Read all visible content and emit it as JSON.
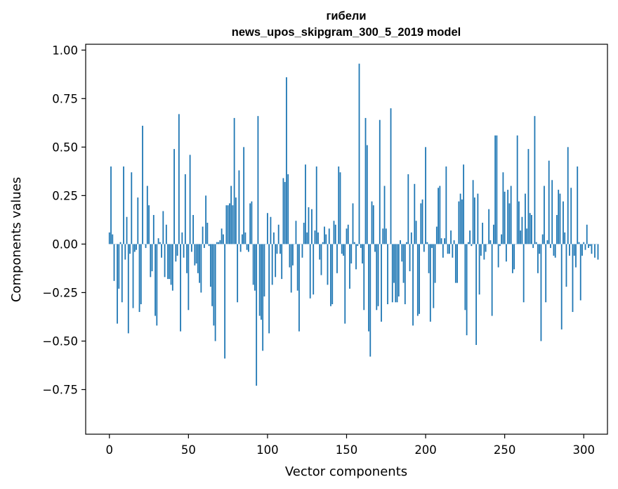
{
  "chart_data": {
    "type": "bar",
    "title": "гибели",
    "subtitle": "news_upos_skipgram_300_5_2019 model",
    "xlabel": "Vector components",
    "ylabel": "Components values",
    "xlim": [
      -15,
      315
    ],
    "ylim": [
      -0.98,
      1.03
    ],
    "xticks": [
      0,
      50,
      100,
      150,
      200,
      250,
      300
    ],
    "yticks": [
      1.0,
      0.75,
      0.5,
      0.25,
      0.0,
      -0.25,
      -0.5,
      -0.75
    ],
    "ytick_labels": [
      "1.00",
      "0.75",
      "0.50",
      "0.25",
      "0.00",
      "−0.25",
      "−0.50",
      "−0.75"
    ],
    "grid": false,
    "bar_color": "#1f77b4",
    "values": [
      0.06,
      0.4,
      0.05,
      -0.19,
      0.0,
      -0.41,
      -0.23,
      0.01,
      -0.3,
      0.4,
      -0.08,
      0.14,
      -0.46,
      -0.05,
      0.37,
      -0.33,
      -0.04,
      -0.03,
      0.24,
      -0.35,
      -0.31,
      0.61,
      0.0,
      -0.02,
      0.3,
      0.2,
      -0.17,
      -0.14,
      0.15,
      -0.37,
      -0.42,
      0.03,
      0.01,
      -0.07,
      0.17,
      -0.17,
      0.1,
      -0.18,
      -0.18,
      -0.21,
      -0.24,
      0.49,
      -0.09,
      -0.06,
      0.67,
      -0.45,
      0.06,
      -0.07,
      0.36,
      -0.15,
      -0.34,
      0.46,
      -0.04,
      0.15,
      -0.11,
      -0.1,
      -0.15,
      -0.2,
      -0.25,
      0.09,
      -0.02,
      0.25,
      0.11,
      -0.01,
      -0.22,
      -0.32,
      -0.42,
      -0.5,
      0.01,
      0.01,
      0.02,
      0.08,
      0.05,
      -0.59,
      0.2,
      0.2,
      0.21,
      0.3,
      0.2,
      0.65,
      0.24,
      -0.3,
      0.38,
      -0.04,
      0.05,
      0.5,
      0.06,
      -0.03,
      -0.04,
      0.21,
      0.22,
      -0.21,
      -0.24,
      -0.73,
      0.66,
      -0.37,
      -0.39,
      -0.55,
      -0.27,
      0.0,
      0.16,
      -0.46,
      0.14,
      -0.21,
      0.06,
      -0.17,
      -0.05,
      0.1,
      -0.05,
      -0.18,
      0.34,
      0.32,
      0.86,
      0.36,
      -0.12,
      -0.25,
      -0.11,
      0.0,
      0.12,
      -0.24,
      -0.45,
      0.0,
      -0.07,
      0.11,
      0.41,
      0.06,
      0.19,
      -0.28,
      0.18,
      -0.26,
      0.07,
      0.4,
      0.06,
      -0.08,
      -0.16,
      0.01,
      0.09,
      0.05,
      -0.21,
      0.08,
      -0.32,
      -0.31,
      0.12,
      0.1,
      -0.15,
      0.4,
      0.37,
      -0.05,
      -0.06,
      -0.41,
      0.08,
      0.1,
      -0.23,
      -0.1,
      0.21,
      0.01,
      -0.13,
      -0.01,
      0.93,
      -0.02,
      -0.1,
      -0.34,
      0.65,
      0.51,
      -0.45,
      -0.58,
      0.22,
      0.2,
      -0.04,
      -0.34,
      -0.32,
      0.64,
      -0.4,
      0.08,
      0.3,
      0.08,
      -0.31,
      0.0,
      0.7,
      -0.3,
      -0.2,
      -0.3,
      -0.3,
      -0.27,
      0.02,
      -0.09,
      -0.2,
      -0.31,
      0.01,
      0.36,
      -0.14,
      0.06,
      -0.42,
      0.31,
      0.12,
      -0.37,
      -0.36,
      0.21,
      0.23,
      -0.04,
      0.5,
      0.01,
      -0.15,
      -0.4,
      -0.02,
      -0.33,
      -0.2,
      0.09,
      0.29,
      0.3,
      0.03,
      -0.07,
      0.03,
      0.4,
      -0.05,
      -0.05,
      0.07,
      -0.07,
      0.02,
      -0.2,
      -0.2,
      0.22,
      0.26,
      0.23,
      0.41,
      -0.34,
      -0.47,
      0.01,
      0.07,
      -0.01,
      0.33,
      0.24,
      -0.52,
      0.26,
      -0.26,
      -0.06,
      0.11,
      -0.08,
      -0.04,
      0.0,
      0.18,
      0.02,
      -0.37,
      0.1,
      0.56,
      0.56,
      -0.12,
      -0.01,
      0.05,
      0.37,
      0.27,
      -0.09,
      0.28,
      0.21,
      0.3,
      -0.15,
      -0.13,
      0.0,
      0.56,
      0.22,
      0.07,
      0.14,
      -0.3,
      0.26,
      0.08,
      0.49,
      0.16,
      0.15,
      -0.02,
      0.66,
      0.01,
      -0.15,
      -0.05,
      -0.5,
      0.05,
      0.3,
      -0.3,
      0.02,
      0.43,
      -0.02,
      0.33,
      -0.06,
      -0.07,
      0.15,
      0.28,
      0.26,
      -0.44,
      0.22,
      0.06,
      -0.22,
      0.5,
      -0.06,
      0.29,
      -0.35,
      -0.06,
      -0.12,
      0.4,
      0.01,
      -0.29,
      -0.06,
      0.01,
      -0.03,
      0.1,
      -0.02,
      -0.01,
      -0.05,
      0.0,
      -0.07,
      0.0,
      -0.08
    ]
  }
}
